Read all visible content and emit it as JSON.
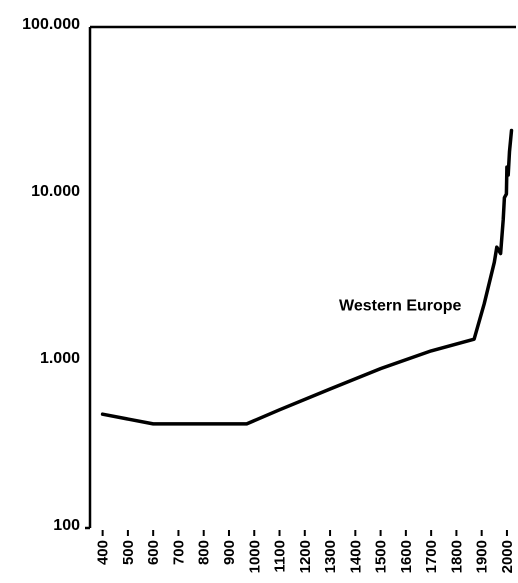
{
  "chart_data": {
    "type": "line",
    "title": "",
    "xlabel": "",
    "ylabel": "",
    "yscale": "log",
    "xlim": [
      350,
      2020
    ],
    "ylim": [
      100,
      100000
    ],
    "yticks": [
      {
        "value": 100,
        "label": "100"
      },
      {
        "value": 1000,
        "label": "1.000"
      },
      {
        "value": 10000,
        "label": "10.000"
      },
      {
        "value": 100000,
        "label": "100.000"
      }
    ],
    "xticks": [
      {
        "value": 400,
        "label": "400"
      },
      {
        "value": 500,
        "label": "500"
      },
      {
        "value": 600,
        "label": "600"
      },
      {
        "value": 700,
        "label": "700"
      },
      {
        "value": 800,
        "label": "800"
      },
      {
        "value": 900,
        "label": "900"
      },
      {
        "value": 1000,
        "label": "1000"
      },
      {
        "value": 1100,
        "label": "1100"
      },
      {
        "value": 1200,
        "label": "1200"
      },
      {
        "value": 1300,
        "label": "1300"
      },
      {
        "value": 1400,
        "label": "1400"
      },
      {
        "value": 1500,
        "label": "1500"
      },
      {
        "value": 1600,
        "label": "1600"
      },
      {
        "value": 1700,
        "label": "1700"
      },
      {
        "value": 1800,
        "label": "1800"
      },
      {
        "value": 1900,
        "label": "1900"
      },
      {
        "value": 2000,
        "label": "2000"
      }
    ],
    "grid": false,
    "legend": "none",
    "annotation": {
      "text": "Western Europe",
      "x": 1820,
      "y": 2000
    },
    "series": [
      {
        "color": "#000000",
        "points": [
          [
            400,
            480
          ],
          [
            600,
            420
          ],
          [
            700,
            420
          ],
          [
            800,
            420
          ],
          [
            970,
            420
          ],
          [
            1100,
            510
          ],
          [
            1300,
            680
          ],
          [
            1500,
            900
          ],
          [
            1700,
            1150
          ],
          [
            1870,
            1350
          ],
          [
            1910,
            2200
          ],
          [
            1950,
            3900
          ],
          [
            1960,
            4800
          ],
          [
            1975,
            4400
          ],
          [
            1985,
            7000
          ],
          [
            1990,
            9500
          ],
          [
            1998,
            10000
          ],
          [
            2000,
            14500
          ],
          [
            2005,
            13000
          ],
          [
            2010,
            18000
          ],
          [
            2018,
            24000
          ]
        ]
      }
    ]
  }
}
